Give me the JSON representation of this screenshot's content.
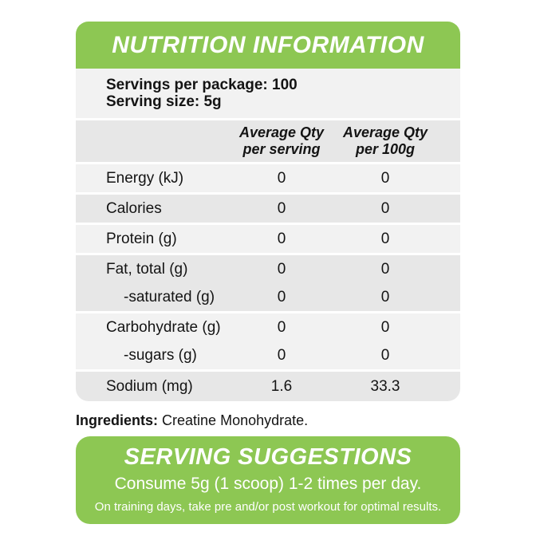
{
  "colors": {
    "green": "#8dc753",
    "band_dark": "#e7e7e7",
    "band_light": "#f2f2f2",
    "text": "#141414",
    "header_text": "#ffffff"
  },
  "header": {
    "title": "NUTRITION INFORMATION"
  },
  "serving_info": {
    "servings_per_package": "Servings per package: 100",
    "serving_size": "Serving size: 5g"
  },
  "table": {
    "columns": [
      {
        "line1": "Average Qty",
        "line2": "per serving"
      },
      {
        "line1": "Average Qty",
        "line2": "per 100g"
      }
    ],
    "rows": [
      {
        "label": "Energy (kJ)",
        "per_serving": "0",
        "per_100g": "0"
      },
      {
        "label": "Calories",
        "per_serving": "0",
        "per_100g": "0"
      },
      {
        "label": "Protein (g)",
        "per_serving": "0",
        "per_100g": "0"
      },
      {
        "label": "Fat, total (g)",
        "per_serving": "0",
        "per_100g": "0"
      },
      {
        "label": "-saturated (g)",
        "per_serving": "0",
        "per_100g": "0"
      },
      {
        "label": "Carbohydrate (g)",
        "per_serving": "0",
        "per_100g": "0"
      },
      {
        "label": "-sugars (g)",
        "per_serving": "0",
        "per_100g": "0"
      },
      {
        "label": "Sodium (mg)",
        "per_serving": "1.6",
        "per_100g": "33.3"
      }
    ]
  },
  "ingredients": {
    "label": "Ingredients:",
    "value": "Creatine Monohydrate."
  },
  "suggestions": {
    "title": "SERVING SUGGESTIONS",
    "line1": "Consume 5g (1 scoop) 1-2 times per day.",
    "line2": "On training days, take pre and/or post workout for optimal results."
  }
}
